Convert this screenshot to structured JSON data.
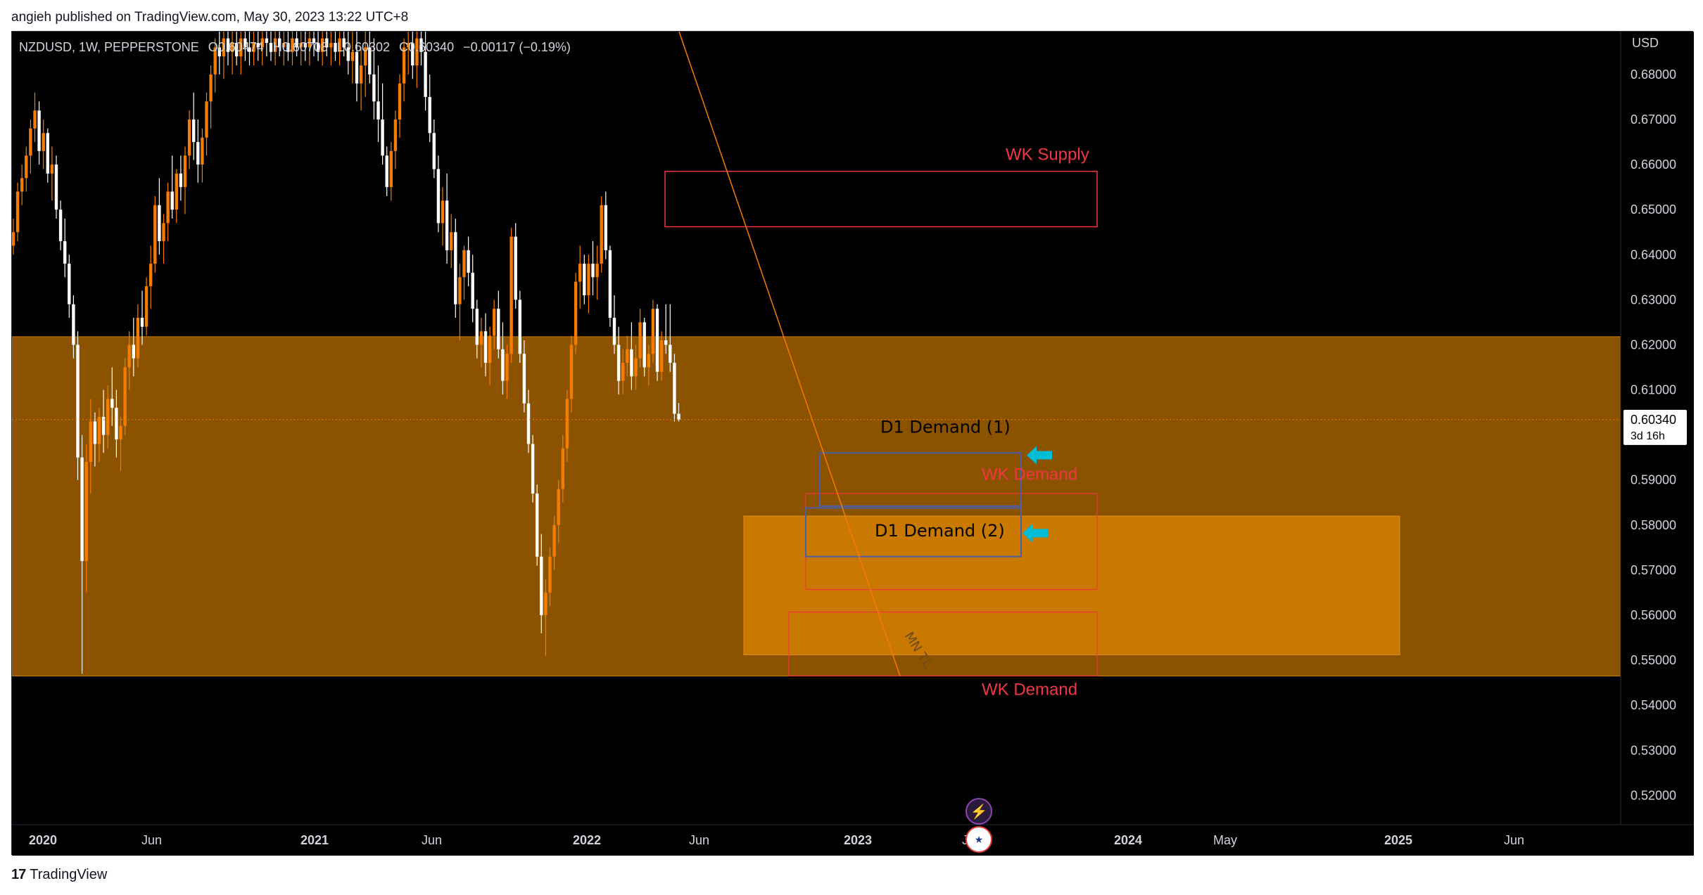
{
  "header": {
    "text": "angieh published on TradingView.com, May 30, 2023 13:22 UTC+8"
  },
  "symbol": {
    "name": "NZDUSD, 1W, PEPPERSTONE",
    "open": "O0.60474",
    "high": "H0.60708",
    "low": "L0.60302",
    "close": "C0.60340",
    "change": "−0.00117 (−0.19%)"
  },
  "footer": {
    "brand": "TradingView"
  },
  "colors": {
    "background": "#000000",
    "bull": "#f57c00",
    "bear": "#ffffff",
    "zone_fill": "#8b5200",
    "inner_zone_fill": "#c97800",
    "supply_red": "#f23645",
    "demand_box": "#4a5fa8",
    "arrow": "#00bcd4",
    "trendline": "#f57c00"
  },
  "icons": {
    "lightning": "lightning-icon",
    "flag": "us-flag-icon"
  },
  "chart_data": {
    "type": "candlestick",
    "currency_label": "USD",
    "y_ticks": [
      "0.52000",
      "0.53000",
      "0.54000",
      "0.55000",
      "0.56000",
      "0.57000",
      "0.58000",
      "0.59000",
      "0.60000",
      "0.61000",
      "0.62000",
      "0.63000",
      "0.64000",
      "0.65000",
      "0.66000",
      "0.67000",
      "0.68000"
    ],
    "x_ticks": [
      "2020",
      "Jun",
      "2021",
      "Jun",
      "2022",
      "Jun",
      "2023",
      "Jun",
      "2024",
      "May",
      "2025",
      "Jun"
    ],
    "ylim": [
      0.5135,
      0.6895
    ],
    "last_price": "0.60340",
    "countdown": "3d 16h",
    "zones": {
      "big_zone": [
        0.5465,
        0.6218
      ],
      "inner_zone": [
        0.5512,
        0.582
      ]
    },
    "annotations": {
      "wk_supply": "WK Supply",
      "d1_demand_1": "D1 Demand (1)",
      "wk_demand_1": "WK Demand",
      "d1_demand_2": "D1 Demand (2)",
      "wk_demand_2": "WK Demand",
      "mn_tl": "MN TL"
    },
    "ohlc": [
      [
        0.642,
        0.648,
        0.64,
        0.645
      ],
      [
        0.645,
        0.656,
        0.643,
        0.654
      ],
      [
        0.654,
        0.66,
        0.651,
        0.657
      ],
      [
        0.657,
        0.664,
        0.654,
        0.662
      ],
      [
        0.662,
        0.67,
        0.658,
        0.668
      ],
      [
        0.668,
        0.676,
        0.665,
        0.672
      ],
      [
        0.672,
        0.674,
        0.66,
        0.663
      ],
      [
        0.663,
        0.67,
        0.659,
        0.667
      ],
      [
        0.667,
        0.668,
        0.656,
        0.658
      ],
      [
        0.658,
        0.664,
        0.652,
        0.66
      ],
      [
        0.66,
        0.662,
        0.648,
        0.65
      ],
      [
        0.65,
        0.652,
        0.641,
        0.643
      ],
      [
        0.643,
        0.648,
        0.635,
        0.638
      ],
      [
        0.638,
        0.64,
        0.626,
        0.629
      ],
      [
        0.629,
        0.631,
        0.617,
        0.62
      ],
      [
        0.62,
        0.623,
        0.59,
        0.595
      ],
      [
        0.595,
        0.6,
        0.547,
        0.572
      ],
      [
        0.572,
        0.598,
        0.565,
        0.594
      ],
      [
        0.594,
        0.608,
        0.587,
        0.603
      ],
      [
        0.603,
        0.605,
        0.593,
        0.598
      ],
      [
        0.598,
        0.606,
        0.594,
        0.604
      ],
      [
        0.604,
        0.61,
        0.596,
        0.6
      ],
      [
        0.6,
        0.611,
        0.597,
        0.608
      ],
      [
        0.608,
        0.615,
        0.602,
        0.606
      ],
      [
        0.606,
        0.61,
        0.595,
        0.599
      ],
      [
        0.599,
        0.604,
        0.592,
        0.602
      ],
      [
        0.602,
        0.617,
        0.6,
        0.615
      ],
      [
        0.615,
        0.623,
        0.61,
        0.62
      ],
      [
        0.62,
        0.626,
        0.613,
        0.617
      ],
      [
        0.617,
        0.629,
        0.615,
        0.626
      ],
      [
        0.626,
        0.632,
        0.62,
        0.624
      ],
      [
        0.624,
        0.635,
        0.622,
        0.633
      ],
      [
        0.633,
        0.642,
        0.628,
        0.638
      ],
      [
        0.638,
        0.653,
        0.636,
        0.651
      ],
      [
        0.651,
        0.657,
        0.64,
        0.643
      ],
      [
        0.643,
        0.649,
        0.638,
        0.647
      ],
      [
        0.647,
        0.656,
        0.643,
        0.654
      ],
      [
        0.654,
        0.662,
        0.648,
        0.65
      ],
      [
        0.65,
        0.659,
        0.647,
        0.658
      ],
      [
        0.658,
        0.662,
        0.652,
        0.655
      ],
      [
        0.655,
        0.664,
        0.649,
        0.662
      ],
      [
        0.662,
        0.672,
        0.659,
        0.67
      ],
      [
        0.67,
        0.676,
        0.661,
        0.665
      ],
      [
        0.665,
        0.67,
        0.656,
        0.66
      ],
      [
        0.66,
        0.668,
        0.656,
        0.666
      ],
      [
        0.666,
        0.676,
        0.662,
        0.674
      ],
      [
        0.674,
        0.682,
        0.668,
        0.68
      ],
      [
        0.68,
        0.688,
        0.676,
        0.686
      ],
      [
        0.686,
        0.69,
        0.68,
        0.684
      ],
      [
        0.684,
        0.69,
        0.679,
        0.688
      ],
      [
        0.688,
        0.69,
        0.682,
        0.685
      ],
      [
        0.685,
        0.69,
        0.68,
        0.687
      ],
      [
        0.687,
        0.69,
        0.682,
        0.684
      ],
      [
        0.684,
        0.69,
        0.68,
        0.688
      ],
      [
        0.688,
        0.69,
        0.683,
        0.686
      ],
      [
        0.686,
        0.69,
        0.682,
        0.685
      ],
      [
        0.685,
        0.69,
        0.682,
        0.687
      ],
      [
        0.687,
        0.69,
        0.683,
        0.686
      ],
      [
        0.686,
        0.69,
        0.682,
        0.688
      ],
      [
        0.688,
        0.69,
        0.684,
        0.687
      ],
      [
        0.687,
        0.69,
        0.683,
        0.685
      ],
      [
        0.685,
        0.69,
        0.682,
        0.688
      ],
      [
        0.688,
        0.69,
        0.684,
        0.686
      ],
      [
        0.686,
        0.69,
        0.682,
        0.687
      ],
      [
        0.687,
        0.69,
        0.683,
        0.685
      ],
      [
        0.685,
        0.69,
        0.682,
        0.688
      ],
      [
        0.688,
        0.69,
        0.684,
        0.686
      ],
      [
        0.686,
        0.69,
        0.682,
        0.687
      ],
      [
        0.687,
        0.69,
        0.683,
        0.686
      ],
      [
        0.686,
        0.69,
        0.682,
        0.688
      ],
      [
        0.688,
        0.69,
        0.684,
        0.687
      ],
      [
        0.687,
        0.69,
        0.683,
        0.685
      ],
      [
        0.685,
        0.69,
        0.682,
        0.688
      ],
      [
        0.688,
        0.69,
        0.684,
        0.686
      ],
      [
        0.686,
        0.69,
        0.682,
        0.687
      ],
      [
        0.687,
        0.69,
        0.683,
        0.685
      ],
      [
        0.685,
        0.69,
        0.682,
        0.688
      ],
      [
        0.688,
        0.69,
        0.684,
        0.686
      ],
      [
        0.686,
        0.69,
        0.68,
        0.683
      ],
      [
        0.683,
        0.69,
        0.678,
        0.685
      ],
      [
        0.685,
        0.69,
        0.674,
        0.678
      ],
      [
        0.678,
        0.686,
        0.672,
        0.682
      ],
      [
        0.682,
        0.69,
        0.675,
        0.686
      ],
      [
        0.686,
        0.69,
        0.678,
        0.68
      ],
      [
        0.68,
        0.688,
        0.67,
        0.674
      ],
      [
        0.674,
        0.682,
        0.665,
        0.67
      ],
      [
        0.67,
        0.678,
        0.66,
        0.662
      ],
      [
        0.662,
        0.664,
        0.653,
        0.655
      ],
      [
        0.655,
        0.665,
        0.652,
        0.663
      ],
      [
        0.663,
        0.672,
        0.659,
        0.67
      ],
      [
        0.67,
        0.68,
        0.666,
        0.678
      ],
      [
        0.678,
        0.688,
        0.674,
        0.686
      ],
      [
        0.686,
        0.69,
        0.68,
        0.687
      ],
      [
        0.687,
        0.69,
        0.679,
        0.682
      ],
      [
        0.682,
        0.69,
        0.677,
        0.688
      ],
      [
        0.688,
        0.69,
        0.682,
        0.685
      ],
      [
        0.685,
        0.69,
        0.672,
        0.675
      ],
      [
        0.675,
        0.68,
        0.665,
        0.667
      ],
      [
        0.667,
        0.67,
        0.657,
        0.659
      ],
      [
        0.659,
        0.662,
        0.645,
        0.647
      ],
      [
        0.647,
        0.655,
        0.642,
        0.652
      ],
      [
        0.652,
        0.658,
        0.638,
        0.641
      ],
      [
        0.641,
        0.649,
        0.637,
        0.645
      ],
      [
        0.645,
        0.648,
        0.626,
        0.629
      ],
      [
        0.629,
        0.638,
        0.621,
        0.635
      ],
      [
        0.635,
        0.642,
        0.63,
        0.641
      ],
      [
        0.641,
        0.644,
        0.633,
        0.636
      ],
      [
        0.636,
        0.64,
        0.625,
        0.628
      ],
      [
        0.628,
        0.63,
        0.617,
        0.62
      ],
      [
        0.62,
        0.626,
        0.615,
        0.623
      ],
      [
        0.623,
        0.627,
        0.613,
        0.616
      ],
      [
        0.616,
        0.624,
        0.611,
        0.622
      ],
      [
        0.622,
        0.63,
        0.619,
        0.628
      ],
      [
        0.628,
        0.632,
        0.617,
        0.619
      ],
      [
        0.619,
        0.625,
        0.609,
        0.612
      ],
      [
        0.612,
        0.62,
        0.608,
        0.618
      ],
      [
        0.618,
        0.646,
        0.616,
        0.644
      ],
      [
        0.644,
        0.647,
        0.628,
        0.63
      ],
      [
        0.63,
        0.632,
        0.616,
        0.618
      ],
      [
        0.618,
        0.621,
        0.605,
        0.607
      ],
      [
        0.607,
        0.61,
        0.596,
        0.598
      ],
      [
        0.598,
        0.6,
        0.585,
        0.587
      ],
      [
        0.587,
        0.589,
        0.571,
        0.573
      ],
      [
        0.573,
        0.578,
        0.556,
        0.56
      ],
      [
        0.56,
        0.568,
        0.551,
        0.565
      ],
      [
        0.565,
        0.575,
        0.562,
        0.573
      ],
      [
        0.573,
        0.582,
        0.57,
        0.58
      ],
      [
        0.58,
        0.59,
        0.576,
        0.588
      ],
      [
        0.588,
        0.6,
        0.585,
        0.597
      ],
      [
        0.597,
        0.61,
        0.594,
        0.608
      ],
      [
        0.608,
        0.622,
        0.605,
        0.62
      ],
      [
        0.62,
        0.636,
        0.618,
        0.634
      ],
      [
        0.634,
        0.642,
        0.628,
        0.638
      ],
      [
        0.638,
        0.64,
        0.629,
        0.631
      ],
      [
        0.631,
        0.64,
        0.627,
        0.638
      ],
      [
        0.638,
        0.643,
        0.631,
        0.635
      ],
      [
        0.635,
        0.642,
        0.63,
        0.638
      ],
      [
        0.638,
        0.653,
        0.636,
        0.651
      ],
      [
        0.651,
        0.654,
        0.639,
        0.641
      ],
      [
        0.641,
        0.642,
        0.624,
        0.626
      ],
      [
        0.626,
        0.631,
        0.618,
        0.62
      ],
      [
        0.62,
        0.624,
        0.609,
        0.612
      ],
      [
        0.612,
        0.619,
        0.609,
        0.616
      ],
      [
        0.616,
        0.622,
        0.613,
        0.619
      ],
      [
        0.619,
        0.625,
        0.61,
        0.613
      ],
      [
        0.613,
        0.62,
        0.61,
        0.617
      ],
      [
        0.617,
        0.628,
        0.615,
        0.625
      ],
      [
        0.625,
        0.626,
        0.613,
        0.615
      ],
      [
        0.615,
        0.62,
        0.611,
        0.618
      ],
      [
        0.618,
        0.63,
        0.616,
        0.628
      ],
      [
        0.628,
        0.629,
        0.612,
        0.614
      ],
      [
        0.614,
        0.623,
        0.612,
        0.621
      ],
      [
        0.621,
        0.629,
        0.618,
        0.62
      ],
      [
        0.62,
        0.629,
        0.614,
        0.616
      ],
      [
        0.616,
        0.618,
        0.603,
        0.6047
      ],
      [
        0.6047,
        0.6071,
        0.603,
        0.6034
      ]
    ]
  }
}
